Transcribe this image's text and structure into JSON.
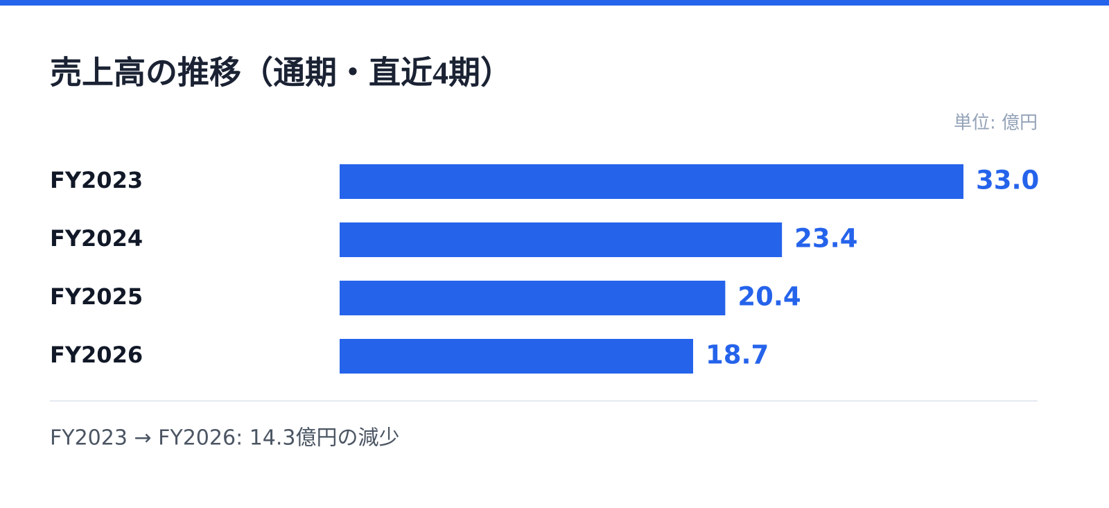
{
  "chart_data": {
    "type": "bar",
    "orientation": "horizontal",
    "title": "売上高の推移（通期・直近4期）",
    "unit_label": "単位: 億円",
    "categories": [
      "FY2023",
      "FY2024",
      "FY2025",
      "FY2026"
    ],
    "values": [
      33.0,
      23.4,
      20.4,
      18.7
    ],
    "value_labels": [
      "33.0",
      "23.4",
      "20.4",
      "18.7"
    ],
    "color": "#2563eb",
    "note": "FY2023 → FY2026: 14.3億円の減少"
  }
}
